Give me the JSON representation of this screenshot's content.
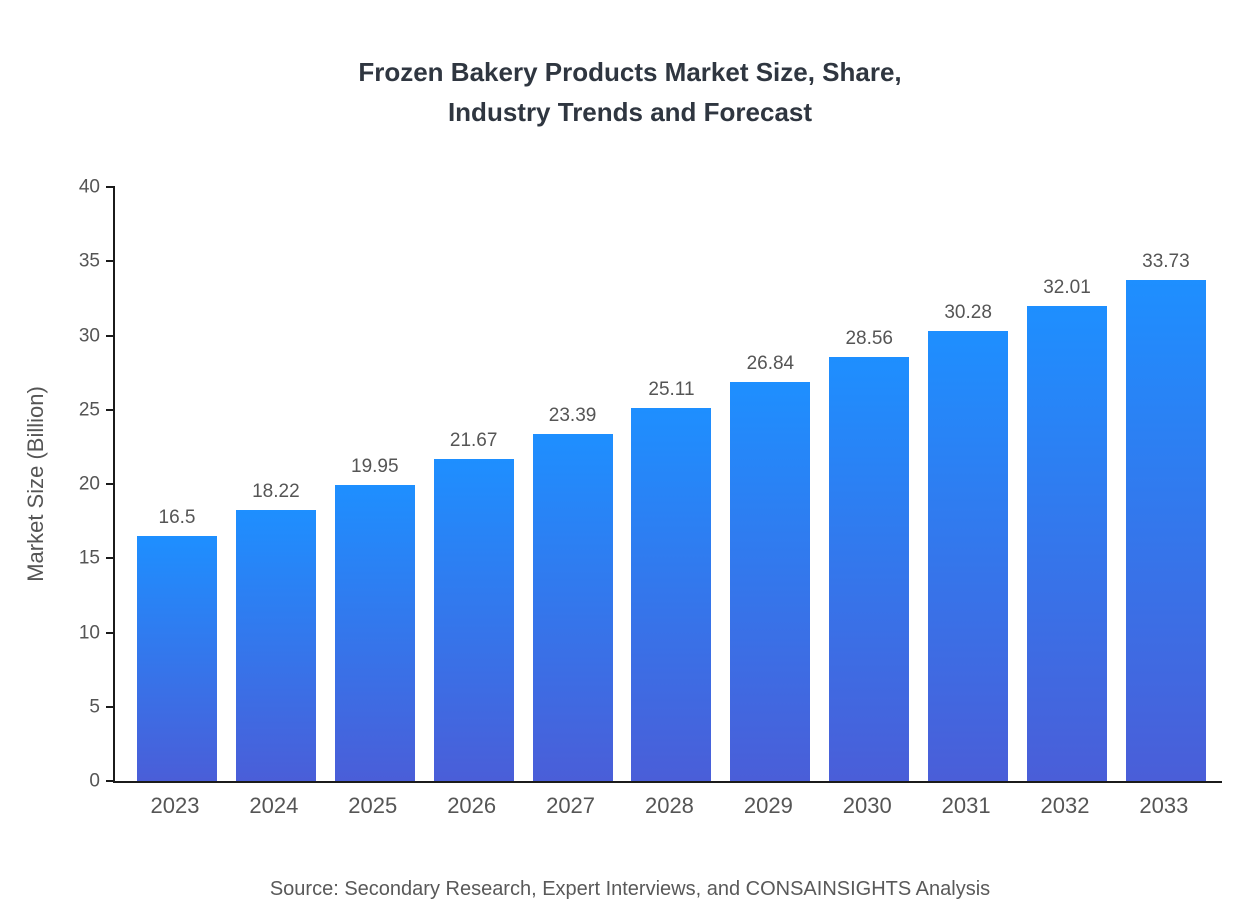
{
  "chart_data": {
    "type": "bar",
    "title": "Frozen Bakery Products Market Size, Share, Industry Trends and Forecast",
    "title_lines": [
      "Frozen Bakery Products Market Size, Share,",
      "Industry Trends and Forecast"
    ],
    "categories": [
      "2023",
      "2024",
      "2025",
      "2026",
      "2027",
      "2028",
      "2029",
      "2030",
      "2031",
      "2032",
      "2033"
    ],
    "values": [
      16.5,
      18.22,
      19.95,
      21.67,
      23.39,
      25.11,
      26.84,
      28.56,
      30.28,
      32.01,
      33.73
    ],
    "value_labels": [
      "16.5",
      "18.22",
      "19.95",
      "21.67",
      "23.39",
      "25.11",
      "26.84",
      "28.56",
      "30.28",
      "32.01",
      "33.73"
    ],
    "xlabel": "",
    "ylabel": "Market Size (Billion)",
    "ylim": [
      0,
      40
    ],
    "y_ticks": [
      0,
      5,
      10,
      15,
      20,
      25,
      30,
      35,
      40
    ],
    "grid": false,
    "legend": false,
    "bar_gradient": {
      "top": "#1E8FFF",
      "bottom": "#4A5ED8"
    },
    "source": "Source: Secondary Research, Expert Interviews, and CONSAINSIGHTS Analysis"
  }
}
